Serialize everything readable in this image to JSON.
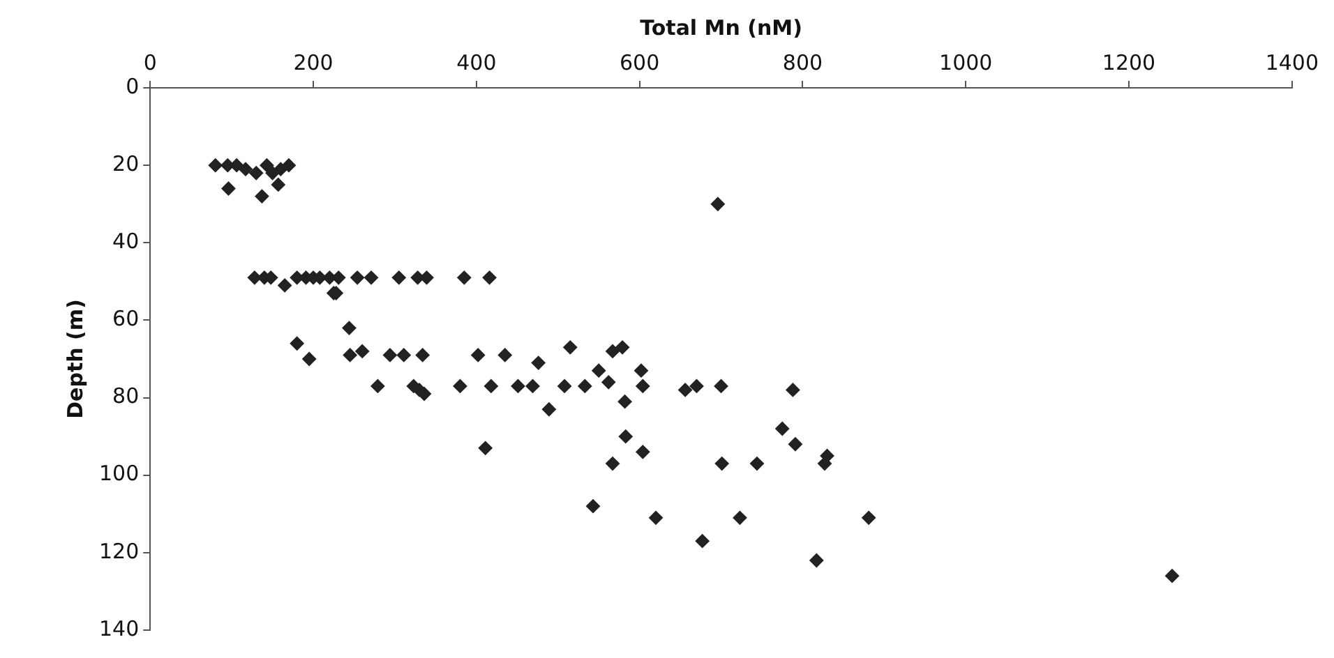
{
  "chart_data": {
    "type": "scatter",
    "xlabel": "Total Mn (nM)",
    "ylabel": "Depth (m)",
    "xlim": [
      0,
      1400
    ],
    "xticks": [
      0,
      200,
      400,
      600,
      800,
      1000,
      1200,
      1400
    ],
    "ylim": [
      140,
      0
    ],
    "yticks": [
      0,
      20,
      40,
      60,
      80,
      100,
      120,
      140
    ],
    "grid": false,
    "legend": false,
    "marker": "diamond",
    "series": [
      {
        "color": "#222222",
        "x": [
          80,
          95,
          106,
          117,
          130,
          143,
          150,
          160,
          170,
          96,
          137,
          157,
          696,
          128,
          140,
          148,
          165,
          180,
          191,
          200,
          208,
          220,
          231,
          225,
          228,
          254,
          271,
          305,
          328,
          339,
          385,
          416,
          244,
          180,
          195,
          245,
          260,
          294,
          311,
          334,
          279,
          323,
          330,
          336,
          380,
          402,
          411,
          418,
          435,
          451,
          469,
          476,
          489,
          508,
          515,
          533,
          543,
          550,
          562,
          567,
          579,
          567,
          582,
          583,
          602,
          604,
          604,
          620,
          656,
          670,
          677,
          700,
          701,
          723,
          744,
          788,
          775,
          791,
          830,
          827,
          817,
          881,
          1253
        ],
        "values": [
          20,
          20,
          20,
          21,
          22,
          20,
          22,
          21,
          20,
          26,
          28,
          25,
          30,
          49,
          49,
          49,
          51,
          49,
          49,
          49,
          49,
          49,
          49,
          53,
          53,
          49,
          49,
          49,
          49,
          49,
          49,
          49,
          62,
          66,
          70,
          69,
          68,
          69,
          69,
          69,
          77,
          77,
          78,
          79,
          77,
          69,
          93,
          77,
          69,
          77,
          77,
          71,
          83,
          77,
          67,
          77,
          108,
          73,
          76,
          68,
          67,
          97,
          81,
          90,
          73,
          77,
          94,
          111,
          78,
          77,
          117,
          77,
          97,
          111,
          97,
          78,
          88,
          92,
          95,
          97,
          122,
          111,
          126
        ]
      }
    ]
  }
}
